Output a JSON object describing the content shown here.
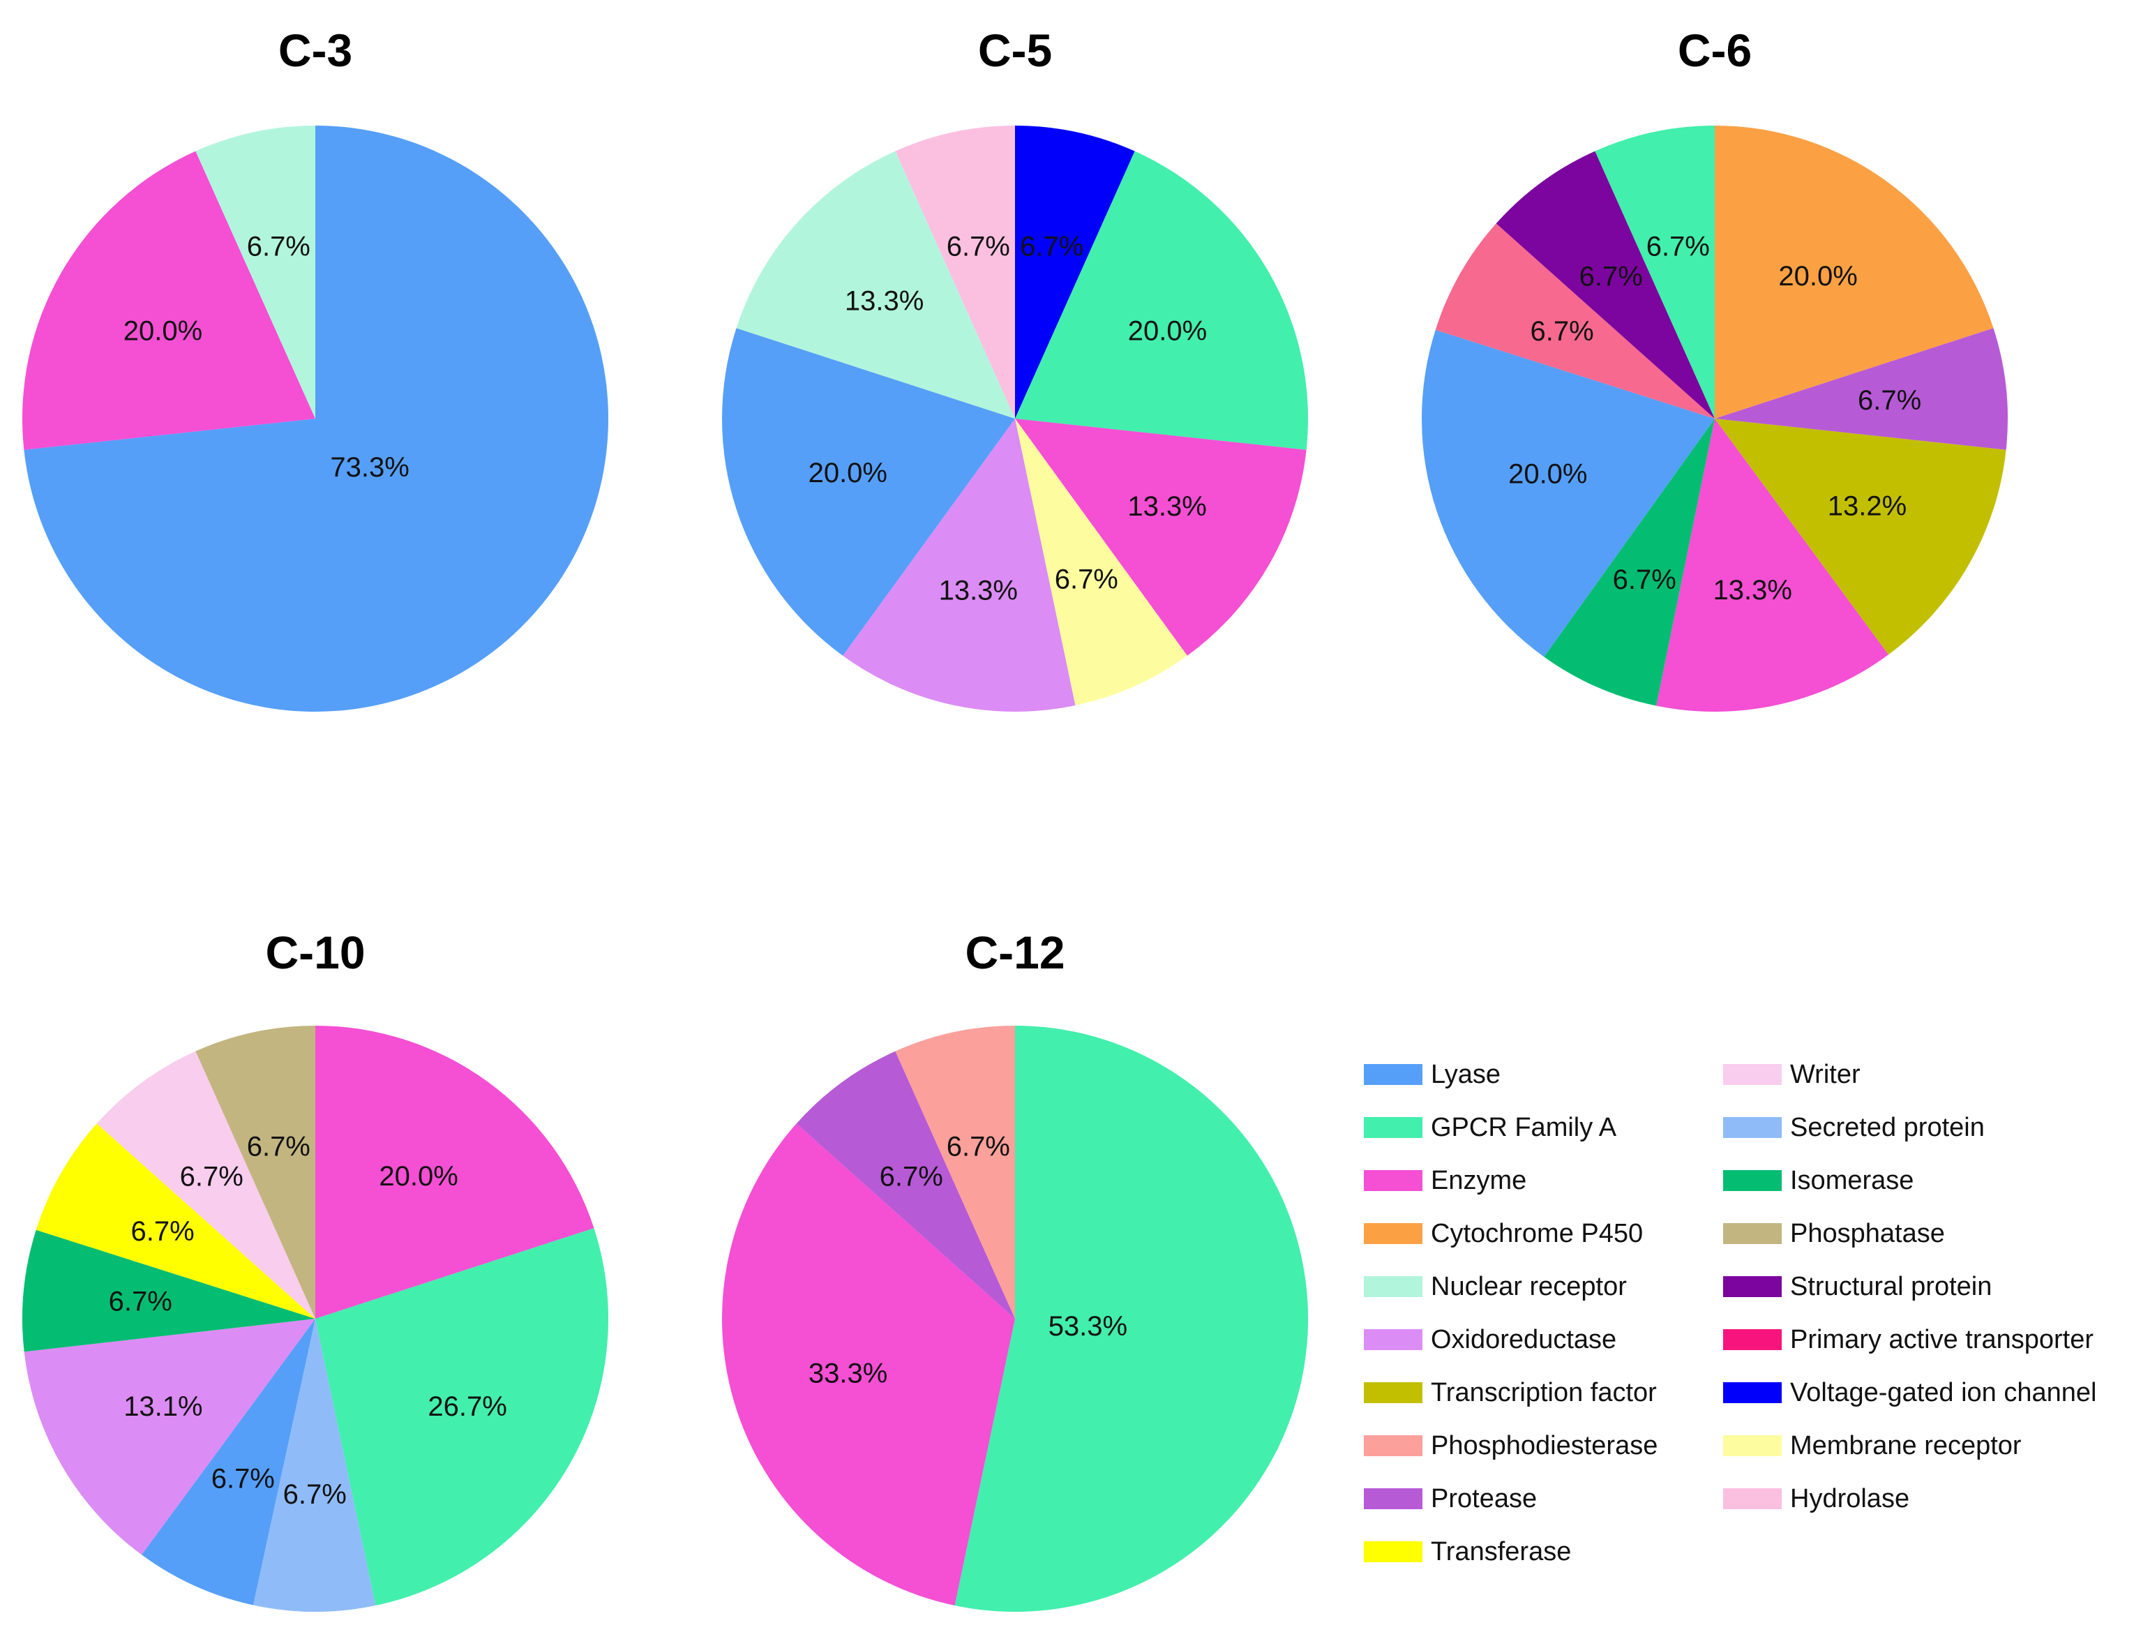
{
  "chart_data": [
    {
      "type": "pie",
      "title": "C-3",
      "slices": [
        {
          "category": "Lyase",
          "value": 73.3,
          "label": "73.3%"
        },
        {
          "category": "Enzyme",
          "value": 20.0,
          "label": "20.0%"
        },
        {
          "category": "Nuclear receptor",
          "value": 6.7,
          "label": "6.7%"
        }
      ]
    },
    {
      "type": "pie",
      "title": "C-5",
      "slices": [
        {
          "category": "Voltage-gated ion channel",
          "value": 6.7,
          "label": "6.7%"
        },
        {
          "category": "GPCR Family A",
          "value": 20.0,
          "label": "20.0%"
        },
        {
          "category": "Enzyme",
          "value": 13.3,
          "label": "13.3%"
        },
        {
          "category": "Membrane receptor",
          "value": 6.7,
          "label": "6.7%"
        },
        {
          "category": "Oxidoreductase",
          "value": 13.3,
          "label": "13.3%"
        },
        {
          "category": "Lyase",
          "value": 20.0,
          "label": "20.0%"
        },
        {
          "category": "Nuclear receptor",
          "value": 13.3,
          "label": "13.3%"
        },
        {
          "category": "Hydrolase",
          "value": 6.7,
          "label": "6.7%"
        }
      ]
    },
    {
      "type": "pie",
      "title": "C-6",
      "slices": [
        {
          "category": "Cytochrome P450",
          "value": 20.0,
          "label": "20.0%"
        },
        {
          "category": "Protease",
          "value": 6.7,
          "label": "6.7%"
        },
        {
          "category": "Transcription factor",
          "value": 13.2,
          "label": "13.2%"
        },
        {
          "category": "Enzyme",
          "value": 13.3,
          "label": "13.3%"
        },
        {
          "category": "Isomerase",
          "value": 6.7,
          "label": "6.7%"
        },
        {
          "category": "Lyase",
          "value": 20.0,
          "label": "20.0%"
        },
        {
          "category": "Phosphodiesterase",
          "value": 6.7,
          "label": "6.7%",
          "color": "#f7698e"
        },
        {
          "category": "Structural protein",
          "value": 6.7,
          "label": "6.7%"
        },
        {
          "category": "GPCR Family A",
          "value": 6.7,
          "label": "6.7%"
        }
      ]
    },
    {
      "type": "pie",
      "title": "C-10",
      "slices": [
        {
          "category": "Enzyme",
          "value": 20.0,
          "label": "20.0%"
        },
        {
          "category": "GPCR Family A",
          "value": 26.7,
          "label": "26.7%"
        },
        {
          "category": "Secreted protein",
          "value": 6.7,
          "label": "6.7%"
        },
        {
          "category": "Lyase",
          "value": 6.7,
          "label": "6.7%"
        },
        {
          "category": "Oxidoreductase",
          "value": 13.1,
          "label": "13.1%"
        },
        {
          "category": "Isomerase",
          "value": 6.7,
          "label": "6.7%"
        },
        {
          "category": "Transferase",
          "value": 6.7,
          "label": "6.7%"
        },
        {
          "category": "Writer",
          "value": 6.7,
          "label": "6.7%"
        },
        {
          "category": "Phosphatase",
          "value": 6.7,
          "label": "6.7%"
        }
      ]
    },
    {
      "type": "pie",
      "title": "C-12",
      "slices": [
        {
          "category": "GPCR Family A",
          "value": 53.3,
          "label": "53.3%"
        },
        {
          "category": "Enzyme",
          "value": 33.3,
          "label": "33.3%"
        },
        {
          "category": "Protease",
          "value": 6.7,
          "label": "6.7%"
        },
        {
          "category": "Phosphodiesterase",
          "value": 6.7,
          "label": "6.7%"
        }
      ]
    }
  ],
  "legend": {
    "columns": [
      [
        {
          "name": "Lyase",
          "color": "#559ff9"
        },
        {
          "name": "GPCR Family A",
          "color": "#42efac"
        },
        {
          "name": "Enzyme",
          "color": "#f54fd4"
        },
        {
          "name": "Cytochrome P450",
          "color": "#fba143"
        },
        {
          "name": "Nuclear receptor",
          "color": "#b2f5dd"
        },
        {
          "name": "Oxidoreductase",
          "color": "#dc8cf5"
        },
        {
          "name": "Transcription factor",
          "color": "#c2bf00"
        },
        {
          "name": "Phosphodiesterase",
          "color": "#fba09b"
        },
        {
          "name": "Protease",
          "color": "#b75ad6"
        },
        {
          "name": "Transferase",
          "color": "#ffff00"
        }
      ],
      [
        {
          "name": "Writer",
          "color": "#f9cdee"
        },
        {
          "name": "Secreted protein",
          "color": "#8fbcf9"
        },
        {
          "name": "Isomerase",
          "color": "#05bd72"
        },
        {
          "name": "Phosphatase",
          "color": "#c2b57f"
        },
        {
          "name": "Structural protein",
          "color": "#7b059e"
        },
        {
          "name": "Primary active transporter",
          "color": "#f7157d"
        },
        {
          "name": "Voltage-gated ion channel",
          "color": "#0000fb"
        },
        {
          "name": "Membrane receptor",
          "color": "#fdfda0"
        },
        {
          "name": "Hydrolase",
          "color": "#fbc0e0"
        }
      ]
    ]
  }
}
